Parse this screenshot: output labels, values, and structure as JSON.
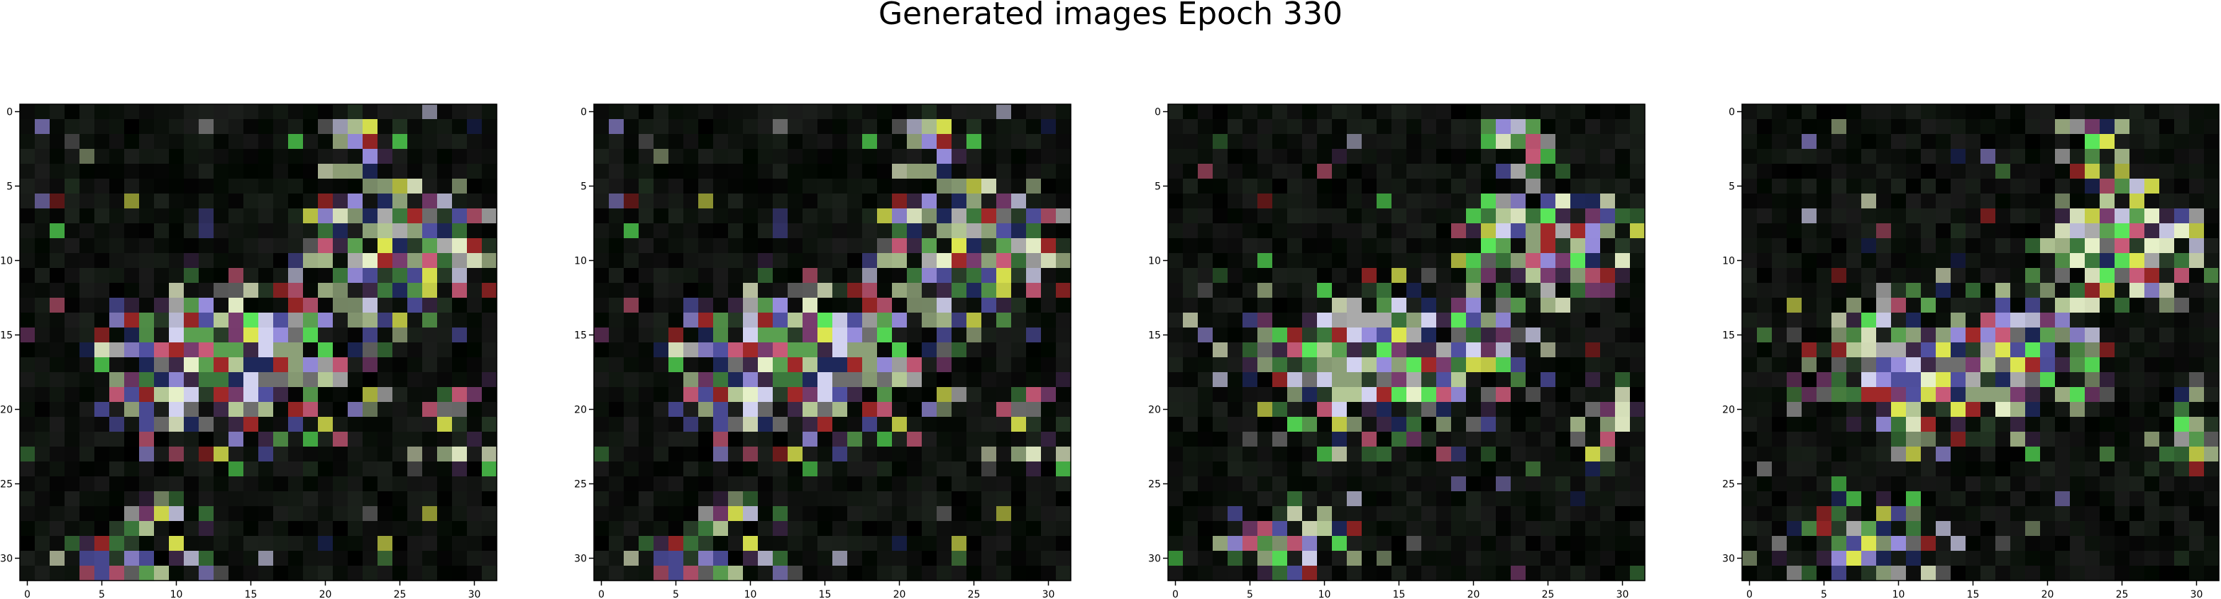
{
  "figure": {
    "title": "Generated images Epoch 330",
    "colors": {
      "background": "#000000",
      "tick": "#000000"
    }
  },
  "panels": [
    {
      "name": "generated-image-1",
      "seed": 11,
      "x_ticks": [
        "0",
        "5",
        "10",
        "15",
        "20",
        "25",
        "30"
      ],
      "y_ticks": [
        "0",
        "5",
        "10",
        "15",
        "20",
        "25",
        "30"
      ]
    },
    {
      "name": "generated-image-2",
      "seed": 11,
      "x_ticks": [
        "0",
        "5",
        "10",
        "15",
        "20",
        "25",
        "30"
      ],
      "y_ticks": [
        "0",
        "5",
        "10",
        "15",
        "20",
        "25",
        "30"
      ]
    },
    {
      "name": "generated-image-3",
      "seed": 12,
      "x_ticks": [
        "0",
        "5",
        "10",
        "15",
        "20",
        "25",
        "30"
      ],
      "y_ticks": [
        "0",
        "5",
        "10",
        "15",
        "20",
        "25",
        "30"
      ]
    },
    {
      "name": "generated-image-4",
      "seed": 13,
      "x_ticks": [
        "0",
        "5",
        "10",
        "15",
        "20",
        "25",
        "30"
      ],
      "y_ticks": [
        "0",
        "5",
        "10",
        "15",
        "20",
        "25",
        "30"
      ]
    }
  ]
}
